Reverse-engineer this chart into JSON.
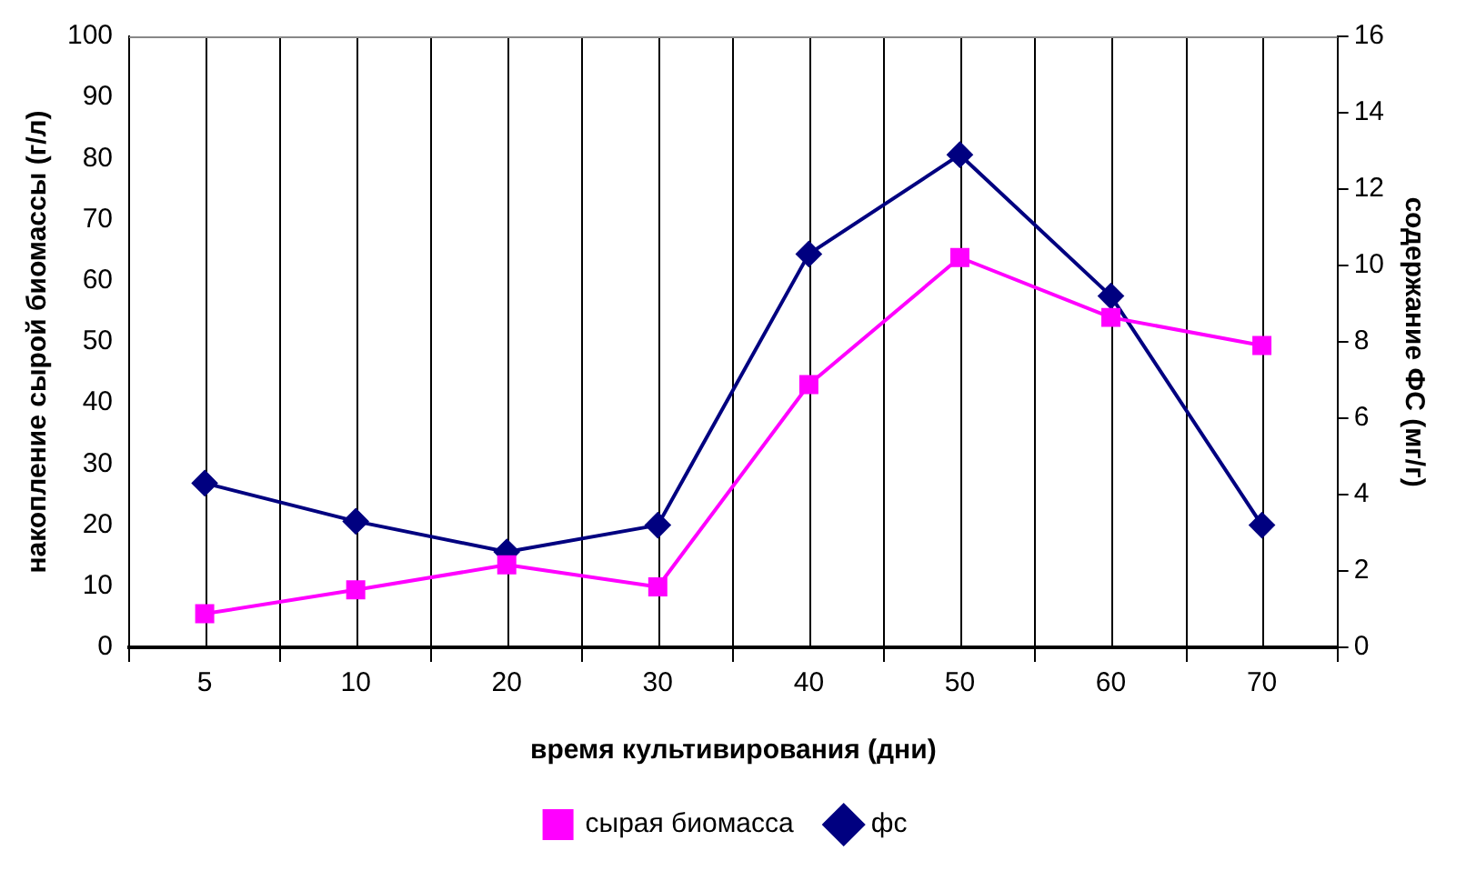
{
  "chart_data": {
    "type": "line",
    "xlabel": "время культивирования (дни)",
    "ylabel": "накопление сырой биомассы (г/л)",
    "y2label": "содержание ФС (мг/г)",
    "categories": [
      "5",
      "10",
      "20",
      "30",
      "40",
      "50",
      "60",
      "70"
    ],
    "series": [
      {
        "name": "сырая биомасса",
        "color": "#ff00ff",
        "marker": "square",
        "values": [
          5.5,
          9.4,
          13.5,
          9.9,
          43,
          63.8,
          54,
          49.4
        ]
      },
      {
        "name": "фс",
        "color": "#000080",
        "marker": "diamond",
        "axis": "y2",
        "values": [
          4.3,
          3.3,
          2.5,
          3.2,
          10.3,
          12.9,
          9.2,
          3.2
        ]
      }
    ],
    "ylim": [
      0,
      100
    ],
    "yticks": [
      0,
      10,
      20,
      30,
      40,
      50,
      60,
      70,
      80,
      90,
      100
    ],
    "y2lim": [
      0,
      16
    ],
    "y2ticks": [
      0,
      2,
      4,
      6,
      8,
      10,
      12,
      14,
      16
    ],
    "grid": "x",
    "legend": "bottom",
    "line_style": "solid"
  }
}
